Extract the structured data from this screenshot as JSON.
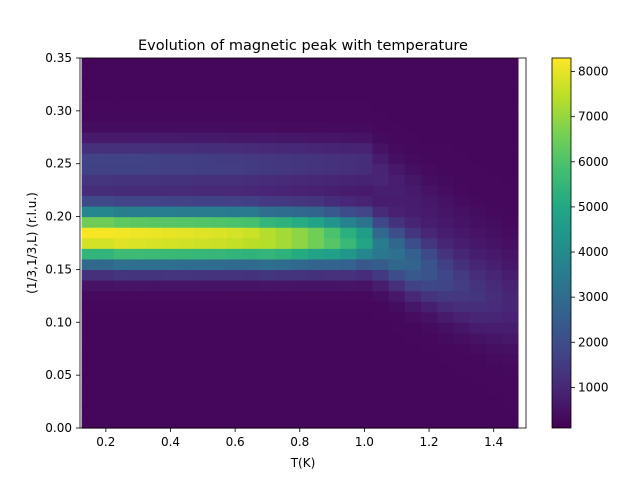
{
  "chart_data": {
    "type": "heatmap",
    "title": "Evolution of magnetic peak with temperature",
    "xlabel": "T(K)",
    "ylabel": "(1/3,1/3,L) (r.l.u.)",
    "xlim": [
      0.12,
      1.5
    ],
    "ylim": [
      0.0,
      0.35
    ],
    "x_ticks": [
      0.2,
      0.4,
      0.6,
      0.8,
      1.0,
      1.2,
      1.4
    ],
    "x_tick_labels": [
      "0.2",
      "0.4",
      "0.6",
      "0.8",
      "1.0",
      "1.2",
      "1.4"
    ],
    "y_ticks": [
      0.0,
      0.05,
      0.1,
      0.15,
      0.2,
      0.25,
      0.3,
      0.35
    ],
    "y_tick_labels": [
      "0.00",
      "0.05",
      "0.10",
      "0.15",
      "0.20",
      "0.25",
      "0.30",
      "0.35"
    ],
    "colormap": "viridis",
    "colorbar_range": [
      100,
      8300
    ],
    "colorbar_ticks": [
      1000,
      2000,
      3000,
      4000,
      5000,
      6000,
      7000,
      8000
    ],
    "colorbar_tick_labels": [
      "1000",
      "2000",
      "3000",
      "4000",
      "5000",
      "6000",
      "7000",
      "8000"
    ],
    "temperatures": [
      0.15,
      0.2,
      0.25,
      0.3,
      0.35,
      0.4,
      0.45,
      0.5,
      0.55,
      0.6,
      0.65,
      0.7,
      0.75,
      0.8,
      0.85,
      0.9,
      0.95,
      1.0,
      1.05,
      1.1,
      1.15,
      1.2,
      1.25,
      1.3,
      1.35,
      1.4,
      1.45
    ],
    "l_step": 0.01,
    "main_peak": {
      "center_L": [
        0.182,
        0.182,
        0.181,
        0.181,
        0.181,
        0.181,
        0.181,
        0.181,
        0.181,
        0.181,
        0.181,
        0.18,
        0.18,
        0.18,
        0.18,
        0.179,
        0.178,
        0.178,
        0.172,
        0.165,
        0.157,
        0.15,
        0.142,
        0.135,
        0.128,
        0.122,
        0.116
      ],
      "amplitude": [
        8100,
        8100,
        8100,
        8050,
        8000,
        7950,
        7900,
        7850,
        7800,
        7700,
        7600,
        7400,
        7200,
        6900,
        6500,
        6000,
        5400,
        4700,
        3300,
        2900,
        2500,
        2000,
        1600,
        1300,
        1100,
        900,
        700
      ],
      "width_L": [
        0.018,
        0.018,
        0.018,
        0.018,
        0.018,
        0.018,
        0.018,
        0.018,
        0.018,
        0.018,
        0.018,
        0.018,
        0.018,
        0.018,
        0.018,
        0.018,
        0.018,
        0.018,
        0.019,
        0.02,
        0.021,
        0.022,
        0.023,
        0.024,
        0.025,
        0.026,
        0.027
      ]
    },
    "secondary_peak": {
      "center_L": [
        0.25,
        0.25,
        0.25,
        0.25,
        0.25,
        0.25,
        0.25,
        0.25,
        0.25,
        0.25,
        0.25,
        0.25,
        0.25,
        0.25,
        0.25,
        0.25,
        0.25,
        0.25,
        0.24,
        0.23,
        0.22,
        0.21,
        0.2,
        0.19,
        0.18,
        0.17,
        0.16
      ],
      "amplitude": [
        1500,
        1500,
        1500,
        1500,
        1480,
        1450,
        1430,
        1400,
        1380,
        1350,
        1300,
        1250,
        1200,
        1150,
        1100,
        1050,
        1000,
        950,
        700,
        550,
        450,
        350,
        300,
        250,
        200,
        180,
        150
      ],
      "width_L": [
        0.016,
        0.016,
        0.016,
        0.016,
        0.016,
        0.016,
        0.016,
        0.016,
        0.016,
        0.016,
        0.016,
        0.016,
        0.016,
        0.016,
        0.016,
        0.016,
        0.016,
        0.016,
        0.017,
        0.018,
        0.019,
        0.02,
        0.021,
        0.022,
        0.023,
        0.024,
        0.025
      ]
    },
    "background_level": 250
  }
}
